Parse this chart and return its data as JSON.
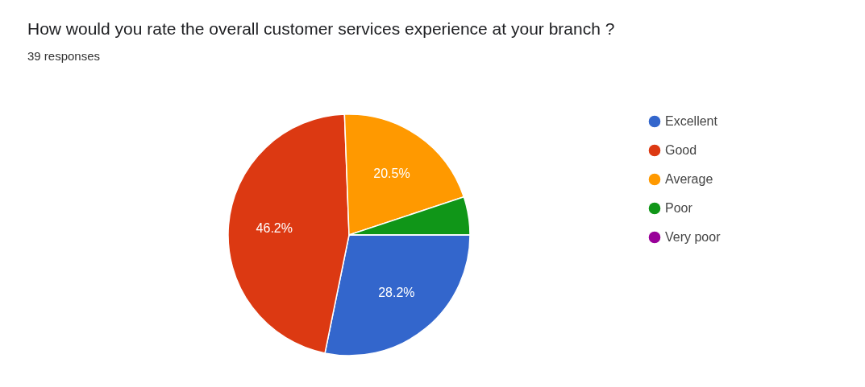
{
  "chart_data": {
    "type": "pie",
    "title": "How would you rate the overall customer services experience at your branch ?",
    "subtitle": "39 responses",
    "categories": [
      "Excellent",
      "Good",
      "Average",
      "Poor",
      "Very poor"
    ],
    "values": [
      28.2,
      46.2,
      20.5,
      5.1,
      0
    ],
    "colors": [
      "#3366cc",
      "#dc3912",
      "#ff9900",
      "#109618",
      "#990099"
    ],
    "value_labels": [
      "28.2%",
      "46.2%",
      "20.5%",
      null,
      null
    ],
    "legend": "right"
  }
}
